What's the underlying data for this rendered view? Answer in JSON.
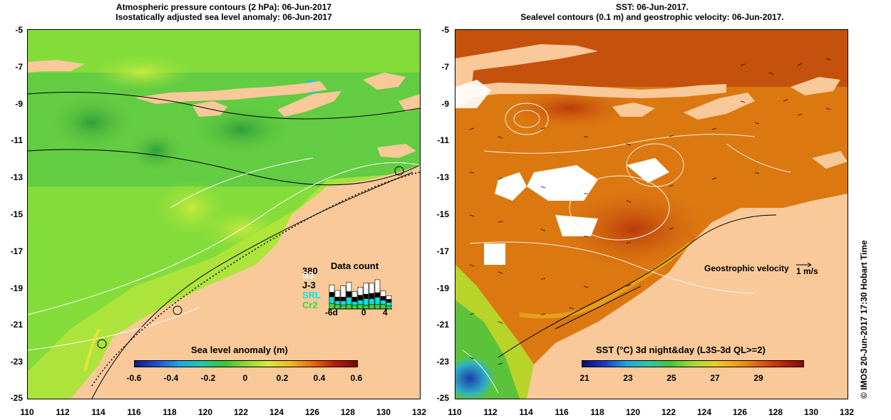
{
  "left_panel": {
    "title_line1": "Atmospheric pressure contours (2 hPa): 06-Jun-2017",
    "title_line2": "Isostatically adjusted sea level anomaly: 06-Jun-2017",
    "colorbar": {
      "label": "Sea level anomaly (m)",
      "ticks": [
        "-0.6",
        "-0.4",
        "-0.2",
        "0",
        "0.2",
        "0.4",
        "0.6"
      ]
    },
    "data_count": {
      "title": "Data count",
      "max_label": "380",
      "legend": [
        {
          "label": "S3",
          "color": "#ffffff"
        },
        {
          "label": "J-3",
          "color": "#000000"
        },
        {
          "label": "SRL",
          "color": "#00e5e5"
        },
        {
          "label": "Cr2",
          "color": "#33dd33"
        }
      ],
      "x_ticks": [
        "-6d",
        "0",
        "4"
      ],
      "days": [
        -6,
        -5,
        -4,
        -3,
        -2,
        -1,
        0,
        1,
        2,
        3,
        4
      ],
      "stacks": [
        [
          0.2,
          0.12,
          0.18,
          0.15
        ],
        [
          0.18,
          0.1,
          0.1,
          0.12
        ],
        [
          0.3,
          0.1,
          0.12,
          0.1
        ],
        [
          0.25,
          0.15,
          0.2,
          0.12
        ],
        [
          0.15,
          0.12,
          0.1,
          0.1
        ],
        [
          0.22,
          0.13,
          0.12,
          0.12
        ],
        [
          0.3,
          0.12,
          0.18,
          0.1
        ],
        [
          0.28,
          0.14,
          0.16,
          0.12
        ],
        [
          0.35,
          0.12,
          0.2,
          0.12
        ],
        [
          0.15,
          0.1,
          0.12,
          0.12
        ],
        [
          0.1,
          0.08,
          0.1,
          0.08
        ]
      ]
    }
  },
  "right_panel": {
    "title_line1": "SST: 06-Jun-2017.",
    "title_line2": "Sealevel contours (0.1 m) and geostrophic velocity: 06-Jun-2017.",
    "colorbar": {
      "label": "SST (°C) 3d night&day (L3S-3d QL>=2)",
      "ticks": [
        "21",
        "23",
        "25",
        "27",
        "29"
      ]
    },
    "geostrophic_label": "Geostrophic velocity",
    "velocity_unit": "1 m/s"
  },
  "axes": {
    "lat_labels": [
      "-5",
      "-7",
      "-9",
      "-11",
      "-13",
      "-15",
      "-17",
      "-19",
      "-21",
      "-23",
      "-25"
    ],
    "lon_labels": [
      "110",
      "112",
      "114",
      "116",
      "118",
      "120",
      "122",
      "124",
      "126",
      "128",
      "130",
      "132"
    ]
  },
  "side_text": "© IMOS 20-Jun-2017 17:30 Hobart Time",
  "colors": {
    "land": "#f9c99a",
    "sla_ocean": "#7fdc3a",
    "sst_ocean": "#d9700f"
  }
}
